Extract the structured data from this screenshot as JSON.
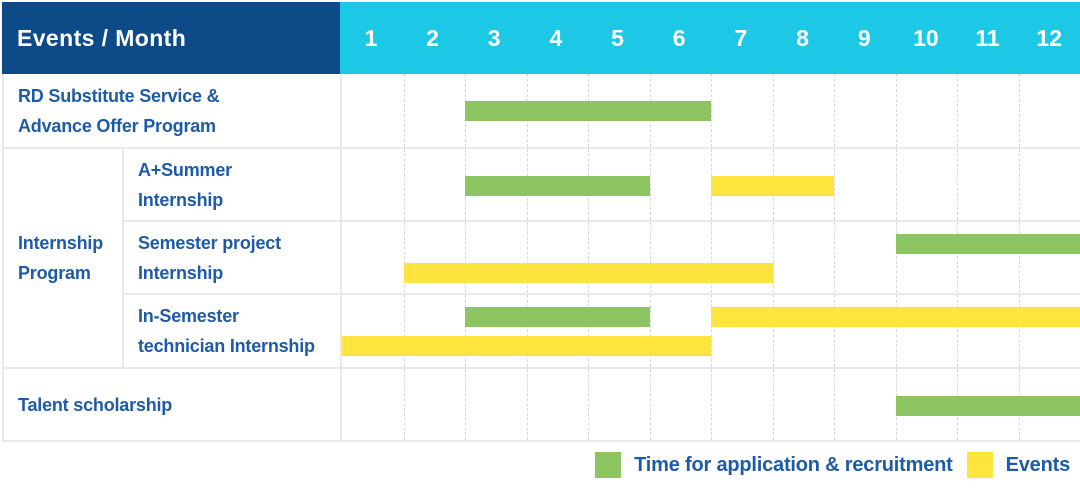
{
  "header": {
    "title": "Events / Month",
    "months": [
      "1",
      "2",
      "3",
      "4",
      "5",
      "6",
      "7",
      "8",
      "9",
      "10",
      "11",
      "12"
    ]
  },
  "group": {
    "id": "internship-program",
    "label_lines": [
      "Internship",
      "Program"
    ]
  },
  "rows": [
    {
      "id": "rd-substitute-service",
      "label_lines": [
        "RD Substitute Service &",
        "Advance Offer Program"
      ],
      "group": null,
      "lanes": [
        [
          {
            "kind": "recruitment",
            "start": 3,
            "end": 6
          }
        ]
      ]
    },
    {
      "id": "a-plus-summer-internship",
      "label_lines": [
        "A+Summer",
        "Internship"
      ],
      "group": "internship-program",
      "lanes": [
        [
          {
            "kind": "recruitment",
            "start": 3,
            "end": 5
          },
          {
            "kind": "event",
            "start": 7,
            "end": 8
          }
        ]
      ]
    },
    {
      "id": "semester-project-internship",
      "label_lines": [
        "Semester project",
        "Internship"
      ],
      "group": "internship-program",
      "lanes": [
        [
          {
            "kind": "recruitment",
            "start": 10,
            "end": 12
          }
        ],
        [
          {
            "kind": "event",
            "start": 2,
            "end": 7
          }
        ]
      ]
    },
    {
      "id": "in-semester-technician-internship",
      "label_lines": [
        "In-Semester",
        "technician Internship"
      ],
      "group": "internship-program",
      "lanes": [
        [
          {
            "kind": "recruitment",
            "start": 3,
            "end": 5
          },
          {
            "kind": "event",
            "start": 7,
            "end": 12
          }
        ],
        [
          {
            "kind": "event",
            "start": 1,
            "end": 6
          }
        ]
      ]
    },
    {
      "id": "talent-scholarship",
      "label_lines": [
        "Talent scholarship"
      ],
      "group": null,
      "lanes": [
        [
          {
            "kind": "recruitment",
            "start": 10,
            "end": 12
          }
        ]
      ]
    }
  ],
  "legend": {
    "items": [
      {
        "kind": "recruitment",
        "label": "Time for application & recruitment"
      },
      {
        "kind": "event",
        "label": "Events"
      }
    ]
  },
  "colors": {
    "header_bg": "#0d4b88",
    "month_header_bg": "#1cc8e6",
    "header_text": "#ffffff",
    "label_text": "#1e5ba6",
    "recruitment": "#8dc563",
    "event": "#ffe440",
    "grid_line": "#e9e9e9",
    "month_line": "#d8d8d8"
  },
  "chart_data": {
    "type": "bar",
    "subtype": "gantt",
    "title": "Events / Month",
    "x_unit": "month",
    "x_ticks": [
      1,
      2,
      3,
      4,
      5,
      6,
      7,
      8,
      9,
      10,
      11,
      12
    ],
    "x_range": [
      1,
      12
    ],
    "grid": true,
    "legend": [
      "Time for application & recruitment",
      "Events"
    ],
    "legend_position": "bottom-right",
    "series_colors": {
      "Time for application & recruitment": "#8dc563",
      "Events": "#ffe440"
    },
    "rows": [
      {
        "task": "RD Substitute Service & Advance Offer Program",
        "group": null,
        "spans": [
          {
            "series": "Time for application & recruitment",
            "start_month": 3,
            "end_month": 6
          }
        ]
      },
      {
        "task": "A+Summer Internship",
        "group": "Internship Program",
        "spans": [
          {
            "series": "Time for application & recruitment",
            "start_month": 3,
            "end_month": 5
          },
          {
            "series": "Events",
            "start_month": 7,
            "end_month": 8
          }
        ]
      },
      {
        "task": "Semester project Internship",
        "group": "Internship Program",
        "spans": [
          {
            "series": "Time for application & recruitment",
            "start_month": 10,
            "end_month": 12
          },
          {
            "series": "Events",
            "start_month": 2,
            "end_month": 7
          }
        ]
      },
      {
        "task": "In-Semester technician Internship",
        "group": "Internship Program",
        "spans": [
          {
            "series": "Time for application & recruitment",
            "start_month": 3,
            "end_month": 5
          },
          {
            "series": "Events",
            "start_month": 7,
            "end_month": 12
          },
          {
            "series": "Events",
            "start_month": 1,
            "end_month": 6
          }
        ]
      },
      {
        "task": "Talent scholarship",
        "group": null,
        "spans": [
          {
            "series": "Time for application & recruitment",
            "start_month": 10,
            "end_month": 12
          }
        ]
      }
    ]
  }
}
